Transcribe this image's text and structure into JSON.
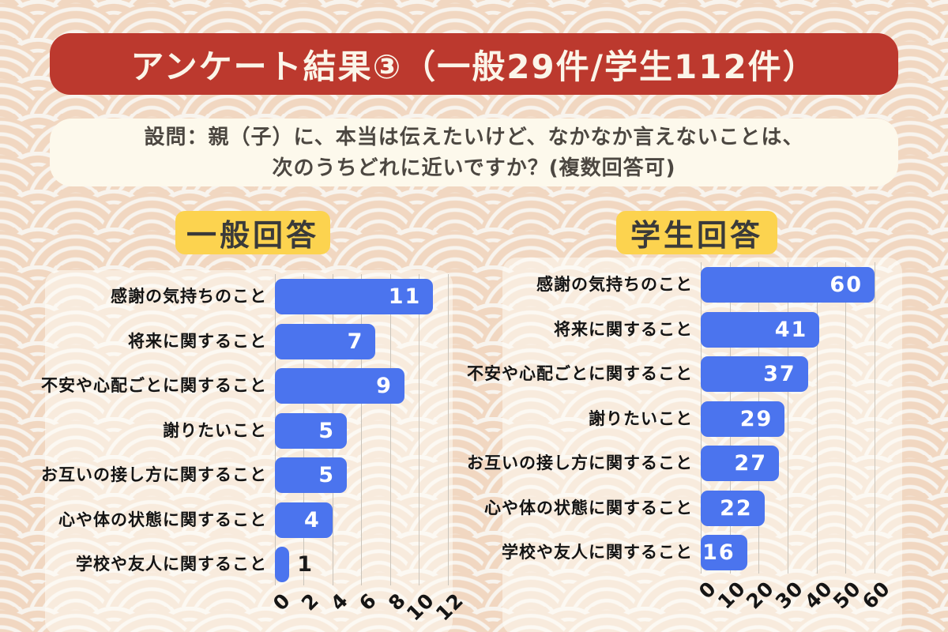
{
  "page": {
    "title": "アンケート結果③（一般29件/学生112件）",
    "question_line1": "設問：親（子）に、本当は伝えたいけど、なかなか言えないことは、",
    "question_line2": "次のうちどれに近いですか？(複数回答可)"
  },
  "colors": {
    "banner_red": "#bc392e",
    "banner_text_cream": "#fbf5e9",
    "question_box_cream": "#fdf9ec",
    "badge_yellow": "#fcd34f",
    "bar_blue": "#4b74ee",
    "gridline_gray": "#c9c4bb",
    "background_cream": "#f8f4ee",
    "pattern_peach": "#f1d7c1",
    "value_text_inside": "#ffffff",
    "value_text_outside": "#1a1a1a"
  },
  "chart_data": [
    {
      "type": "bar",
      "orientation": "horizontal",
      "title": "一般回答",
      "categories": [
        "感謝の気持ちのこと",
        "将来に関すること",
        "不安や心配ごとに関すること",
        "謝りたいこと",
        "お互いの接し方に関すること",
        "心や体の状態に関すること",
        "学校や友人に関すること"
      ],
      "values": [
        11,
        7,
        9,
        5,
        5,
        4,
        1
      ],
      "xticks": [
        0,
        2,
        4,
        6,
        8,
        10,
        12
      ],
      "xlim": [
        0,
        12
      ],
      "xtick_rotation": 45,
      "grid": true,
      "legend": "none",
      "value_labels": "inside-end"
    },
    {
      "type": "bar",
      "orientation": "horizontal",
      "title": "学生回答",
      "categories": [
        "感謝の気持ちのこと",
        "将来に関すること",
        "不安や心配ごとに関すること",
        "謝りたいこと",
        "お互いの接し方に関すること",
        "心や体の状態に関すること",
        "学校や友人に関すること"
      ],
      "values": [
        60,
        41,
        37,
        29,
        27,
        22,
        16
      ],
      "xticks": [
        0,
        10,
        20,
        30,
        40,
        50,
        60
      ],
      "xlim": [
        0,
        60
      ],
      "xtick_rotation": 45,
      "grid": true,
      "legend": "none",
      "value_labels": "inside-end"
    }
  ]
}
